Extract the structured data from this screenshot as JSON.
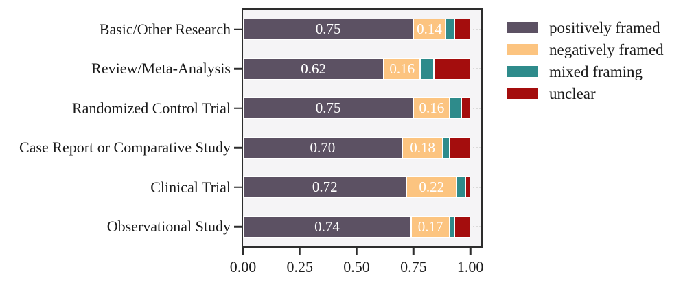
{
  "figure": {
    "background": "#ffffff",
    "plot_background": "#f5f4f6",
    "frame_color": "#2d2d2d",
    "text_color": "#1a1a1a",
    "bar_label_color": "#ffffff"
  },
  "chart_data": {
    "type": "bar",
    "orientation": "horizontal",
    "stacked": true,
    "title": "",
    "xlabel": "",
    "ylabel": "",
    "xlim": [
      0,
      1.048
    ],
    "grid": false,
    "legend_position": "outside-upper-right",
    "categories": [
      "Basic/Other Research",
      "Review/Meta-Analysis",
      "Randomized Control Trial",
      "Case Report or Comparative Study",
      "Clinical Trial",
      "Observational Study"
    ],
    "series": [
      {
        "name": "positively framed",
        "color": "#5c5163",
        "show_labels": true,
        "values": [
          0.75,
          0.62,
          0.75,
          0.7,
          0.72,
          0.74
        ]
      },
      {
        "name": "negatively framed",
        "color": "#fcc480",
        "show_labels": true,
        "values": [
          0.14,
          0.16,
          0.16,
          0.18,
          0.22,
          0.17
        ]
      },
      {
        "name": "mixed framing",
        "color": "#2e8b8b",
        "show_labels": false,
        "values": [
          0.04,
          0.06,
          0.05,
          0.03,
          0.04,
          0.02
        ]
      },
      {
        "name": "unclear",
        "color": "#a40d0d",
        "show_labels": false,
        "values": [
          0.07,
          0.16,
          0.04,
          0.09,
          0.02,
          0.07
        ]
      }
    ],
    "xticks": {
      "values": [
        0,
        0.25,
        0.5,
        0.75,
        1.0
      ],
      "labels": [
        "0.00",
        "0.25",
        "0.50",
        "0.75",
        "1.00"
      ]
    }
  }
}
